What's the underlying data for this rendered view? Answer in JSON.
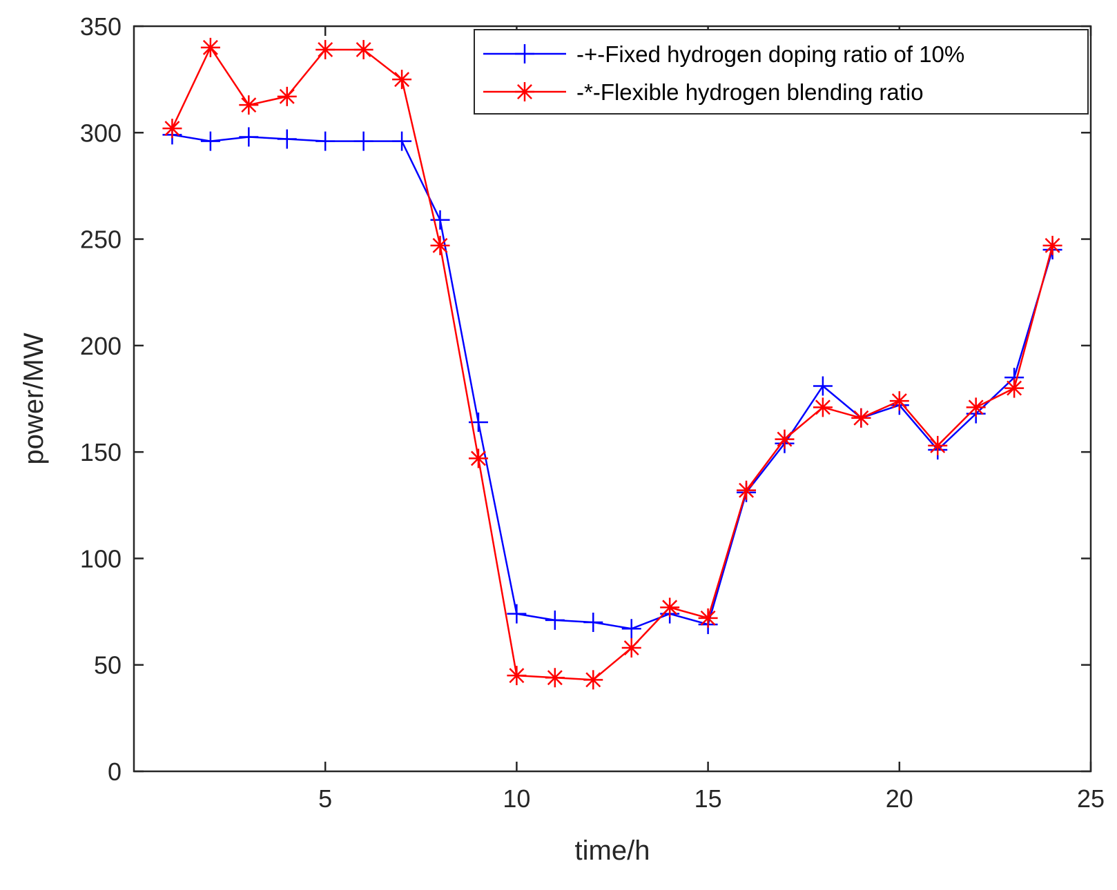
{
  "chart_data": {
    "type": "line",
    "title": "",
    "xlabel": "time/h",
    "ylabel": "power/MW",
    "xlim": [
      0,
      25
    ],
    "ylim": [
      0,
      350
    ],
    "xticks": [
      5,
      10,
      15,
      20,
      25
    ],
    "yticks": [
      0,
      50,
      100,
      150,
      200,
      250,
      300,
      350
    ],
    "grid": false,
    "legend_position": "top-right",
    "x": [
      1,
      2,
      3,
      4,
      5,
      6,
      7,
      8,
      9,
      10,
      11,
      12,
      13,
      14,
      15,
      16,
      17,
      18,
      19,
      20,
      21,
      22,
      23,
      24
    ],
    "series": [
      {
        "name": "-+-Fixed hydrogen doping ratio of 10%",
        "color": "#0000ff",
        "marker": "plus",
        "values": [
          299,
          296,
          298,
          297,
          296,
          296,
          296,
          259,
          164,
          74,
          71,
          70,
          67,
          74,
          69,
          131,
          154,
          181,
          166,
          172,
          151,
          168,
          185,
          245
        ]
      },
      {
        "name": "-*-Flexible hydrogen blending ratio",
        "color": "#ff0000",
        "marker": "asterisk",
        "values": [
          302,
          340,
          313,
          317,
          339,
          339,
          325,
          247,
          147,
          45,
          44,
          43,
          58,
          77,
          72,
          132,
          156,
          171,
          166,
          174,
          153,
          171,
          180,
          247
        ]
      }
    ]
  }
}
